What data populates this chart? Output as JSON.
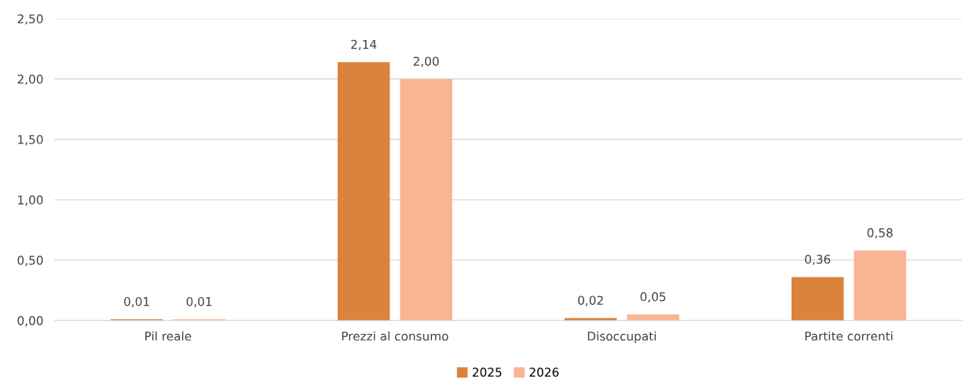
{
  "chart_data": {
    "type": "bar",
    "categories": [
      "Pil reale",
      "Prezzi al consumo",
      "Disoccupati",
      "Partite correnti"
    ],
    "series": [
      {
        "name": "2025",
        "color": "#da833d",
        "values": [
          0.01,
          2.14,
          0.02,
          0.36
        ],
        "value_labels": [
          "0,01",
          "2,14",
          "0,02",
          "0,36"
        ]
      },
      {
        "name": "2026",
        "color": "#f8b593",
        "values": [
          0.01,
          2.0,
          0.05,
          0.58
        ],
        "value_labels": [
          "0,01",
          "2,00",
          "0,05",
          "0,58"
        ]
      }
    ],
    "ylim": [
      0,
      2.5
    ],
    "yticks": [
      {
        "value": 0,
        "label": "0,00"
      },
      {
        "value": 0.5,
        "label": "0,50"
      },
      {
        "value": 1.0,
        "label": "1,00"
      },
      {
        "value": 1.5,
        "label": "1,50"
      },
      {
        "value": 2.0,
        "label": "2,00"
      },
      {
        "value": 2.5,
        "label": "2,50"
      }
    ],
    "grid": "y",
    "legend": "bottom"
  }
}
